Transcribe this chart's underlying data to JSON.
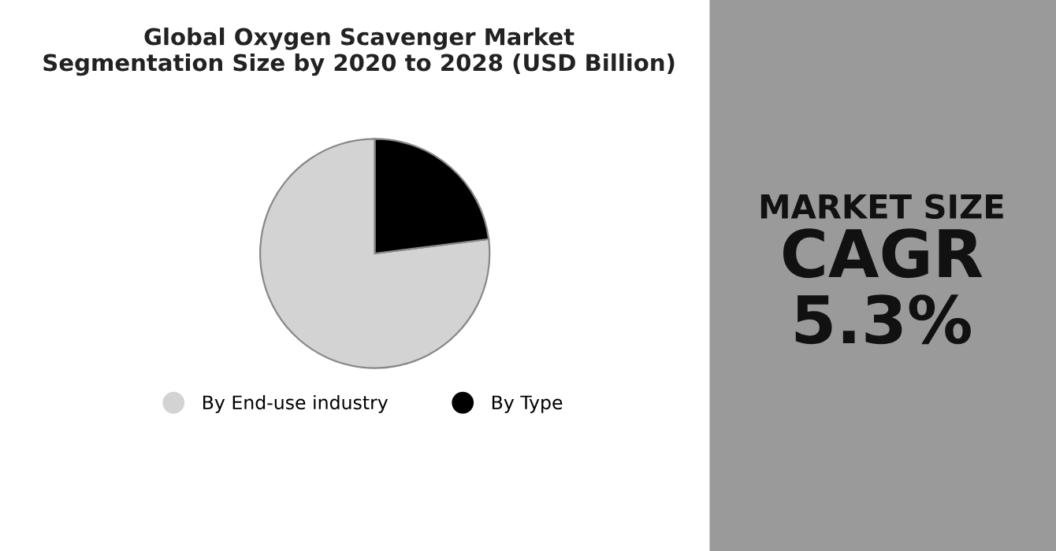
{
  "chart_data": {
    "type": "pie",
    "title": "Global Oxygen Scavenger Market\nSegmentation Size by 2020 to 2028 (USD Billion)",
    "categories": [
      "By End-use industry",
      "By Type"
    ],
    "values": [
      77,
      23
    ],
    "colors": [
      "#d3d3d3",
      "#000000"
    ],
    "legend": "bottom",
    "annotations": [
      "MARKET SIZE",
      "CAGR",
      "5.3%"
    ]
  }
}
